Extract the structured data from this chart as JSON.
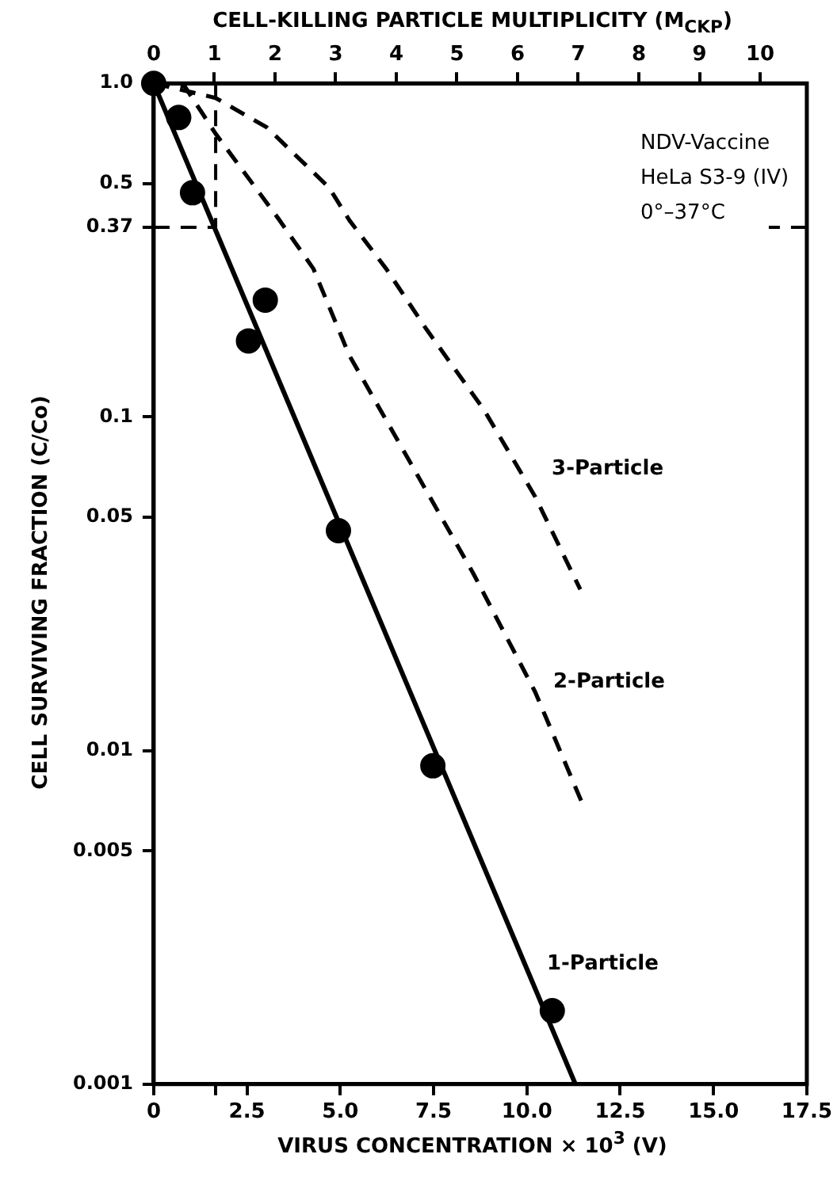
{
  "chart_data": {
    "type": "scatter",
    "xlabel": "VIRUS CONCENTRATION × 10$^{3}$ (V)",
    "x2label": "CELL-KILLING PARTICLE MULTIPLICITY (M$_{CKP}$)",
    "ylabel": "CELL SURVIVING FRACTION (C/Co)",
    "log": "y",
    "grid": false,
    "legend": false,
    "xlim": [
      0,
      17.5
    ],
    "xticks": [
      0,
      {
        "value": 1.66,
        "label": null
      },
      2.5,
      {
        "value": 5,
        "label": "5.0"
      },
      7.5,
      {
        "value": 10,
        "label": "10.0"
      },
      12.5,
      {
        "value": 15,
        "label": "15.0"
      },
      17.5
    ],
    "x2lim": [
      0,
      10.77
    ],
    "x2ticks": [
      0,
      1,
      2,
      3,
      4,
      5,
      6,
      7,
      8,
      9,
      10
    ],
    "ylim": [
      0.001,
      1
    ],
    "yticks": [
      {
        "value": 1,
        "label": "1.0"
      },
      0.5,
      0.37,
      0.1,
      0.05,
      0.01,
      0.005,
      0.001
    ],
    "annotations": [
      "NDV-Vaccine",
      "HeLa S3-9 (IV)",
      "0°–37°C"
    ],
    "ref_lines": [
      {
        "axis": "y",
        "value": 0.37,
        "line_style": "dashed",
        "color": "#000000"
      },
      {
        "axis": "x",
        "value": 1.66,
        "line_style": "dashed",
        "color": "#000000"
      }
    ],
    "series": [
      {
        "color": "#000000",
        "marker": "circle",
        "x": [
          0,
          0.67,
          1.04,
          2.54,
          2.99,
          4.95,
          7.48,
          10.68
        ],
        "values": [
          1,
          0.79,
          0.47,
          0.169,
          0.224,
          0.0456,
          0.009,
          0.00166
        ]
      },
      {
        "type": "line",
        "name": "1-Particle",
        "color": "#000000",
        "marker": "none",
        "line_style": "solid",
        "x": [
          0,
          11.3
        ],
        "values": [
          1,
          0.001
        ]
      },
      {
        "type": "line",
        "name": "2-Particle",
        "color": "#000000",
        "marker": "none",
        "line_style": "dashed",
        "x": [
          0,
          0.83,
          1.66,
          3.37,
          4.28,
          5.24,
          6.9,
          8.56,
          10.22,
          11.47
        ],
        "values": [
          1,
          0.98,
          0.706,
          0.389,
          0.278,
          0.153,
          0.0722,
          0.034,
          0.015,
          0.007
        ]
      },
      {
        "type": "line",
        "name": "3-Particle",
        "color": "#000000",
        "marker": "none",
        "line_style": "dashed",
        "x": [
          0,
          1.66,
          3.03,
          4.7,
          5.24,
          6.23,
          7.31,
          8.85,
          10.22,
          11.43
        ],
        "values": [
          1,
          0.904,
          0.738,
          0.487,
          0.389,
          0.278,
          0.183,
          0.105,
          0.0577,
          0.0304
        ]
      }
    ]
  }
}
